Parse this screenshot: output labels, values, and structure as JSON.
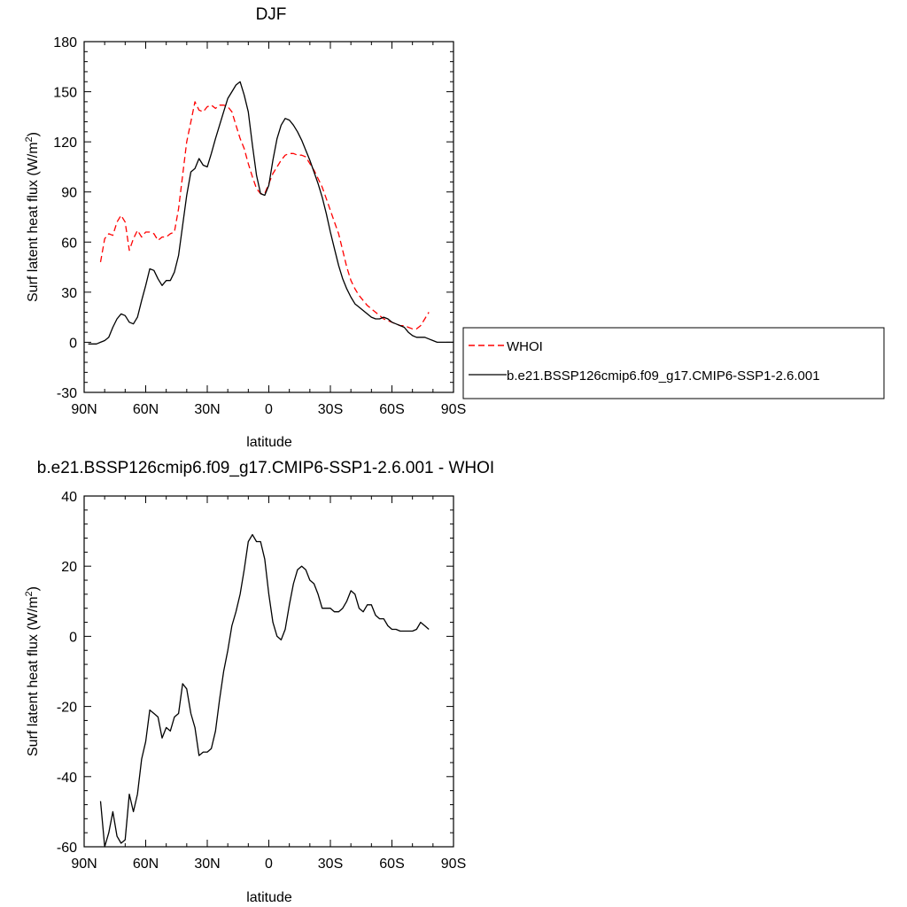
{
  "chart_data": [
    {
      "type": "line",
      "title": "DJF",
      "xlabel": "latitude",
      "ylabel": "Surf latent heat flux (W/m",
      "ylabel_sup": "2",
      "ylabel_close": ")",
      "xlim": [
        90,
        -90
      ],
      "ylim": [
        -30,
        180
      ],
      "xticks": [
        90,
        60,
        30,
        0,
        -30,
        -60,
        -90
      ],
      "xtick_labels": [
        "90N",
        "60N",
        "30N",
        "0",
        "30S",
        "60S",
        "90S"
      ],
      "yticks": [
        -30,
        0,
        30,
        60,
        90,
        120,
        150,
        180
      ],
      "ytick_labels": [
        "-30",
        "0",
        "30",
        "60",
        "90",
        "120",
        "150",
        "180"
      ],
      "legend_position": "right",
      "series": [
        {
          "name": "WHOI",
          "color": "#ff0000",
          "dash": "dashed",
          "x": [
            82,
            80,
            78,
            76,
            74,
            72,
            70,
            68,
            66,
            64,
            62,
            60,
            58,
            56,
            54,
            52,
            50,
            48,
            46,
            44,
            42,
            40,
            38,
            36,
            34,
            32,
            30,
            28,
            26,
            24,
            22,
            20,
            18,
            16,
            14,
            12,
            10,
            8,
            6,
            4,
            2,
            0,
            -2,
            -4,
            -6,
            -8,
            -10,
            -12,
            -14,
            -16,
            -18,
            -20,
            -22,
            -24,
            -26,
            -28,
            -30,
            -32,
            -34,
            -36,
            -38,
            -40,
            -42,
            -44,
            -46,
            -48,
            -50,
            -52,
            -54,
            -56,
            -58,
            -60,
            -62,
            -64,
            -66,
            -68,
            -70,
            -72,
            -74,
            -76,
            -78
          ],
          "y": [
            48,
            62,
            65,
            64,
            72,
            76,
            72,
            55,
            62,
            67,
            63,
            66,
            66,
            65,
            61,
            63,
            63,
            65,
            66,
            80,
            100,
            120,
            132,
            144,
            139,
            138,
            141,
            142,
            140,
            142,
            142,
            141,
            138,
            130,
            122,
            116,
            107,
            99,
            92,
            89,
            89,
            95,
            101,
            105,
            109,
            112,
            113,
            113,
            112,
            112,
            111,
            107,
            103,
            98,
            93,
            86,
            79,
            72,
            65,
            55,
            45,
            37,
            32,
            28,
            25,
            22,
            20,
            18,
            16,
            14,
            13,
            12,
            11,
            10,
            10,
            9,
            8,
            8,
            10,
            14,
            18
          ]
        },
        {
          "name": "b.e21.BSSP126cmip6.f09_g17.CMIP6-SSP1-2.6.001",
          "color": "#000000",
          "dash": "solid",
          "x": [
            88,
            86,
            84,
            82,
            80,
            78,
            76,
            74,
            72,
            70,
            68,
            66,
            64,
            62,
            60,
            58,
            56,
            54,
            52,
            50,
            48,
            46,
            44,
            42,
            40,
            38,
            36,
            34,
            32,
            30,
            28,
            26,
            24,
            22,
            20,
            18,
            16,
            14,
            12,
            10,
            8,
            6,
            4,
            2,
            0,
            -2,
            -4,
            -6,
            -8,
            -10,
            -12,
            -14,
            -16,
            -18,
            -20,
            -22,
            -24,
            -26,
            -28,
            -30,
            -32,
            -34,
            -36,
            -38,
            -40,
            -42,
            -44,
            -46,
            -48,
            -50,
            -52,
            -54,
            -56,
            -58,
            -60,
            -62,
            -64,
            -66,
            -68,
            -70,
            -72,
            -74,
            -76,
            -78,
            -80,
            -82,
            -84,
            -86,
            -88,
            -90
          ],
          "y": [
            -1,
            -1,
            -1,
            0,
            1,
            3,
            9,
            14,
            17,
            16,
            12,
            11,
            15,
            25,
            34,
            44,
            43,
            38,
            34,
            37,
            37,
            42,
            52,
            70,
            88,
            102,
            104,
            110,
            106,
            105,
            113,
            122,
            130,
            138,
            146,
            150,
            154,
            156,
            148,
            138,
            118,
            100,
            89,
            88,
            94,
            109,
            122,
            130,
            134,
            133,
            130,
            126,
            121,
            115,
            109,
            102,
            95,
            87,
            77,
            66,
            56,
            46,
            38,
            32,
            27,
            23,
            21,
            19,
            17,
            15,
            14,
            14,
            15,
            14,
            12,
            11,
            10,
            9,
            6,
            4,
            3,
            3,
            3,
            2,
            1,
            0,
            0,
            0,
            0,
            0
          ]
        }
      ]
    },
    {
      "type": "line",
      "title": "b.e21.BSSP126cmip6.f09_g17.CMIP6-SSP1-2.6.001 - WHOI",
      "xlabel": "latitude",
      "ylabel": "Surf latent heat flux (W/m",
      "ylabel_sup": "2",
      "ylabel_close": ")",
      "xlim": [
        90,
        -90
      ],
      "ylim": [
        -60,
        40
      ],
      "xticks": [
        90,
        60,
        30,
        0,
        -30,
        -60,
        -90
      ],
      "xtick_labels": [
        "90N",
        "60N",
        "30N",
        "0",
        "30S",
        "60S",
        "90S"
      ],
      "yticks": [
        -60,
        -40,
        -20,
        0,
        20,
        40
      ],
      "ytick_labels": [
        "-60",
        "-40",
        "-20",
        "0",
        "20",
        "40"
      ],
      "series": [
        {
          "color": "#000000",
          "dash": "solid",
          "x": [
            82,
            80,
            78,
            76,
            74,
            72,
            70,
            68,
            66,
            64,
            62,
            60,
            58,
            56,
            54,
            52,
            50,
            48,
            46,
            44,
            42,
            40,
            38,
            36,
            34,
            32,
            30,
            28,
            26,
            24,
            22,
            20,
            18,
            16,
            14,
            12,
            10,
            8,
            6,
            4,
            2,
            0,
            -2,
            -4,
            -6,
            -8,
            -10,
            -12,
            -14,
            -16,
            -18,
            -20,
            -22,
            -24,
            -26,
            -28,
            -30,
            -32,
            -34,
            -36,
            -38,
            -40,
            -42,
            -44,
            -46,
            -48,
            -50,
            -52,
            -54,
            -56,
            -58,
            -60,
            -62,
            -64,
            -66,
            -68,
            -70,
            -72,
            -74,
            -76,
            -78
          ],
          "y": [
            -47,
            -60,
            -56,
            -50,
            -57,
            -59,
            -58,
            -45,
            -50,
            -45,
            -35,
            -30,
            -21,
            -22,
            -23,
            -29,
            -26,
            -27,
            -23,
            -22,
            -13.5,
            -15,
            -22,
            -26,
            -34,
            -33,
            -33,
            -32,
            -27,
            -18,
            -10,
            -4,
            3,
            7,
            12,
            19,
            27,
            29,
            27,
            27,
            22,
            12,
            4,
            0,
            -1,
            2,
            9,
            15,
            19,
            20,
            19,
            16,
            15,
            12,
            8,
            8,
            8,
            7,
            7,
            8,
            10,
            13,
            12,
            8,
            7,
            9,
            9,
            6,
            5,
            5,
            3,
            2,
            2,
            1.5,
            1.5,
            1.5,
            1.5,
            2,
            4,
            3,
            2
          ]
        }
      ]
    }
  ]
}
